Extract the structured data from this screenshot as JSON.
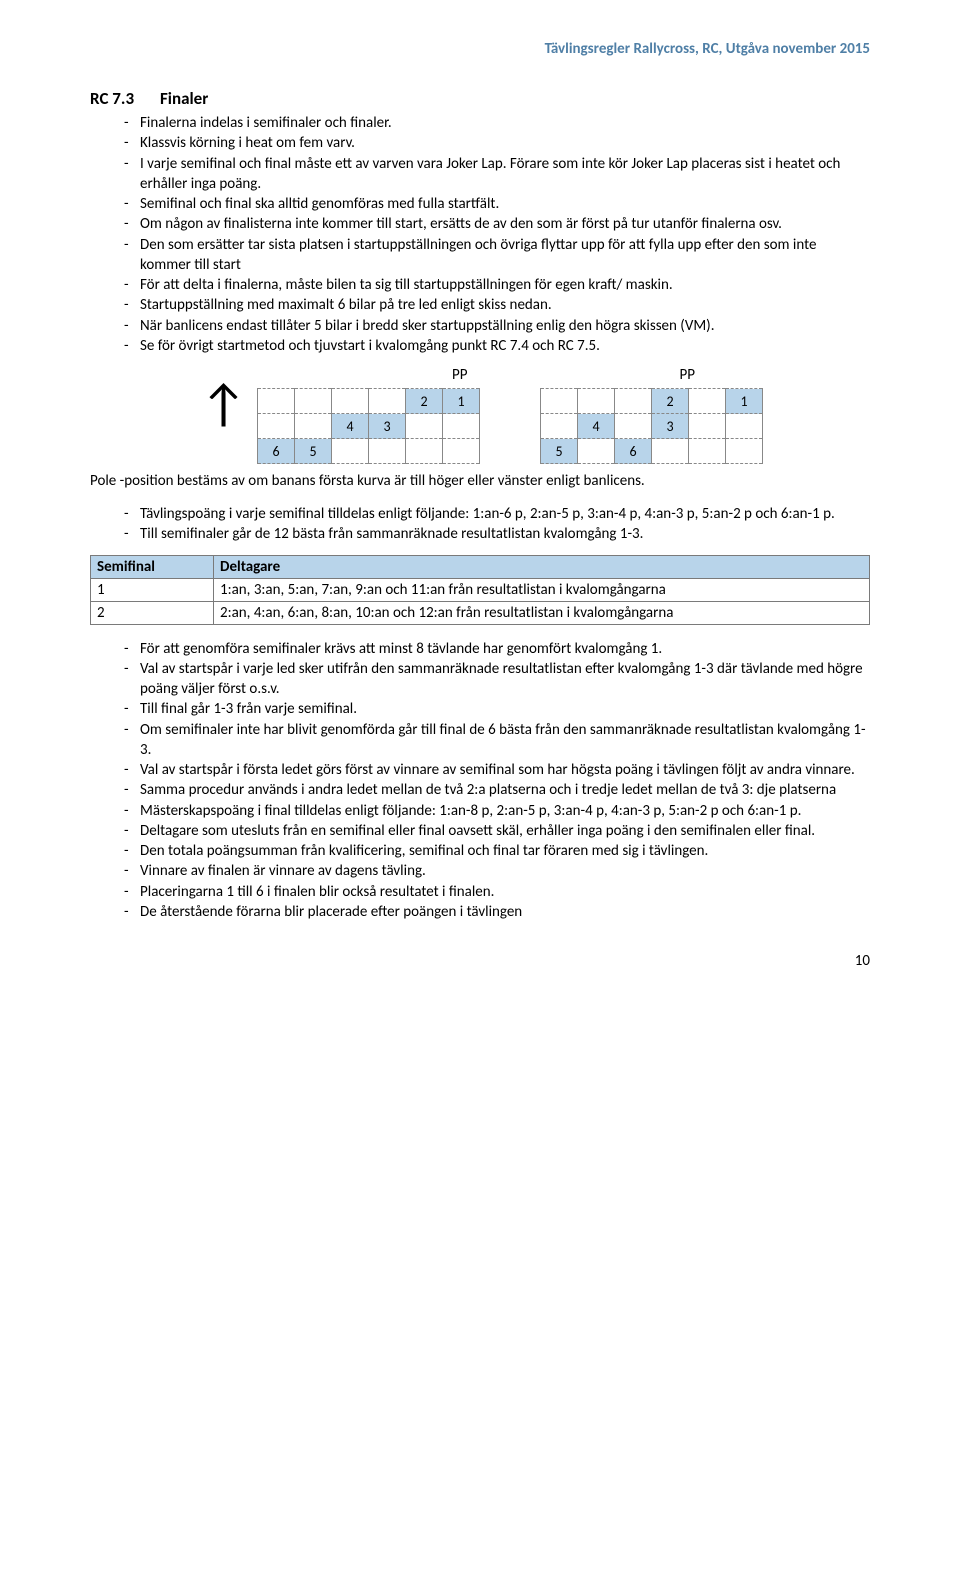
{
  "header": "Tävlingsregler Rallycross, RC, Utgåva november 2015",
  "header_color": "#4f7fa6",
  "section": {
    "num": "RC 7.3",
    "title": "Finaler"
  },
  "list1": [
    "Finalerna indelas i semifinaler och finaler.",
    "Klassvis körning i heat om fem varv.",
    "I varje semifinal och final måste ett av varven vara Joker Lap. Förare som inte kör Joker Lap placeras sist i heatet och erhåller inga poäng.",
    "Semifinal och final ska alltid genomföras med fulla startfält.",
    "Om någon av finalisterna inte kommer till start, ersätts de av den som är först på tur utanför finalerna osv.",
    "Den som ersätter tar sista platsen i startuppställningen och övriga flyttar upp för att fylla upp efter den som inte kommer till start",
    "För att delta i finalerna, måste bilen ta sig till startuppställningen för egen kraft/ maskin.",
    "Startuppställning med maximalt 6 bilar på tre led enligt skiss nedan.",
    "När banlicens endast tillåter 5 bilar i bredd sker startuppställning enlig den högra skissen (VM).",
    "Se för övrigt startmetod och tjuvstart i kvalomgång punkt RC 7.4 och RC 7.5."
  ],
  "pp_label": "PP",
  "grid_fill_color": "#b8d4ea",
  "grid1": [
    [
      null,
      null,
      null,
      null,
      "2",
      "1"
    ],
    [
      null,
      null,
      "4",
      "3",
      null,
      null
    ],
    [
      "6",
      "5",
      null,
      null,
      null,
      null
    ]
  ],
  "grid2": [
    [
      null,
      null,
      null,
      "2",
      null,
      "1"
    ],
    [
      null,
      "4",
      null,
      "3",
      null,
      null
    ],
    [
      "5",
      null,
      "6",
      null,
      null,
      null
    ]
  ],
  "caption": "Pole -position bestäms av om banans första kurva är till höger eller vänster enligt banlicens.",
  "list2": [
    "Tävlingspoäng i varje semifinal tilldelas enligt följande: 1:an-6 p, 2:an-5 p, 3:an-4 p, 4:an-3 p, 5:an-2 p och 6:an-1 p.",
    "Till semifinaler går de 12 bästa från sammanräknade resultatlistan kvalomgång 1-3."
  ],
  "table": {
    "headers": [
      "Semifinal",
      "Deltagare"
    ],
    "rows": [
      [
        "1",
        "1:an, 3:an, 5:an, 7:an, 9:an och 11:an från resultatlistan i kvalomgångarna"
      ],
      [
        "2",
        "2:an, 4:an, 6:an, 8:an, 10:an och 12:an från resultatlistan i kvalomgångarna"
      ]
    ]
  },
  "list3": [
    "För att genomföra semifinaler krävs att minst 8 tävlande har genomfört kvalomgång 1.",
    "Val av startspår i varje led sker utifrån den sammanräknade resultatlistan efter kvalomgång 1-3 där tävlande med högre poäng väljer först o.s.v.",
    "Till final går 1-3 från varje semifinal.",
    "Om semifinaler inte har blivit genomförda går till final de 6 bästa från den sammanräknade resultatlistan kvalomgång 1-3.",
    "Val av startspår i första ledet görs först av vinnare av semifinal som har högsta poäng i tävlingen följt av andra vinnare.",
    "Samma procedur används i andra ledet mellan de två 2:a platserna och i tredje ledet mellan de två 3: dje platserna",
    "Mästerskapspoäng i final tilldelas enligt följande: 1:an-8 p, 2:an-5 p, 3:an-4 p, 4:an-3 p, 5:an-2 p och 6:an-1 p.",
    "Deltagare som utesluts från en semifinal eller final oavsett skäl, erhåller inga poäng i den semifinalen eller final.",
    "Den totala poängsumman från kvalificering, semifinal och final tar föraren med sig i tävlingen.",
    "Vinnare av finalen är vinnare av dagens tävling.",
    "Placeringarna 1 till 6 i finalen blir också resultatet i finalen.",
    "De återstående förarna blir placerade efter poängen i tävlingen"
  ],
  "page_number": "10"
}
